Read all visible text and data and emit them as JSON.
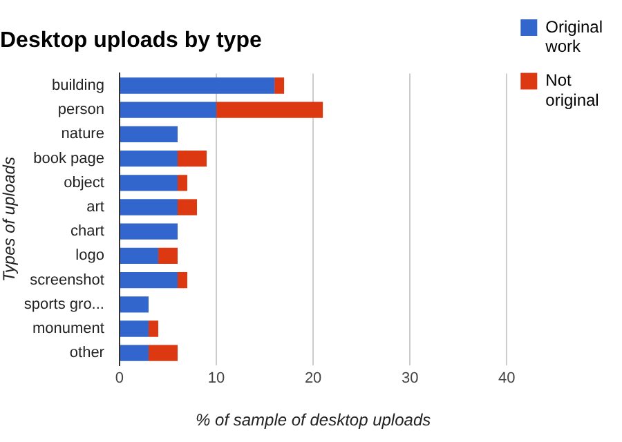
{
  "chart_data": {
    "type": "bar",
    "orientation": "horizontal",
    "stacked": true,
    "title": "Desktop uploads by type",
    "xlabel": "% of sample of desktop uploads",
    "ylabel": "Types of uploads",
    "categories": [
      "building",
      "person",
      "nature",
      "book page",
      "object",
      "art",
      "chart",
      "logo",
      "screenshot",
      "sports gro...",
      "monument",
      "other"
    ],
    "series": [
      {
        "name": "Original work",
        "color": "#3366cc",
        "values": [
          16,
          10,
          6,
          6,
          6,
          6,
          6,
          4,
          6,
          3,
          3,
          3
        ]
      },
      {
        "name": "Not original",
        "color": "#dc3912",
        "values": [
          1,
          11,
          0,
          3,
          1,
          2,
          0,
          2,
          1,
          0,
          1,
          3
        ]
      }
    ],
    "xlim": [
      0,
      40
    ],
    "xticks": [
      0,
      10,
      20,
      30,
      40
    ],
    "grid": "x",
    "legend": "right"
  }
}
